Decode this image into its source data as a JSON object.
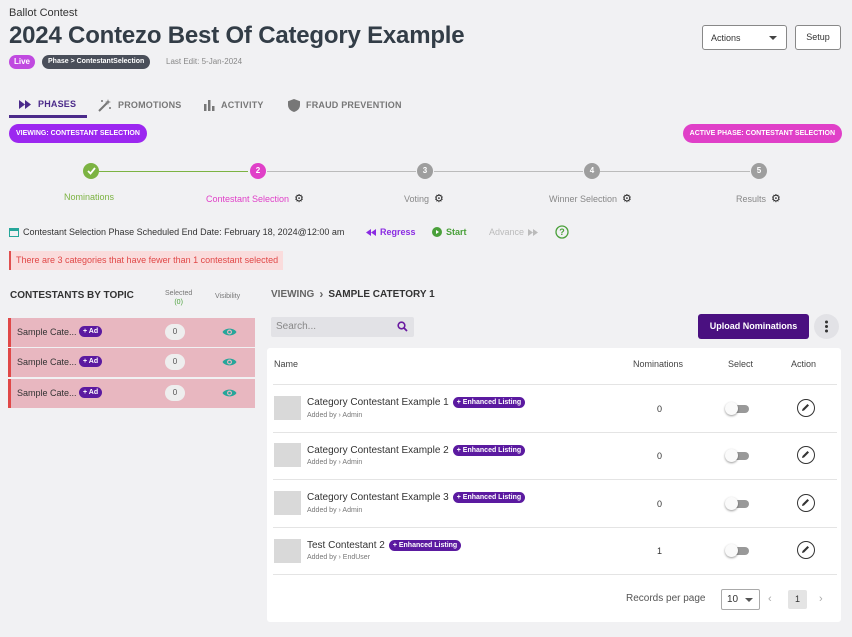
{
  "header": {
    "breadcrumb": "Ballot Contest",
    "title": "2024 Contezo Best Of Category Example",
    "status_badge": "Live",
    "phase_badge": "Phase > ContestantSelection",
    "last_edit": "Last Edit: 5-Jan-2024",
    "actions_label": "Actions",
    "setup_label": "Setup"
  },
  "tabs": [
    {
      "label": "PHASES",
      "icon": "fast-forward-icon",
      "active": true
    },
    {
      "label": "PROMOTIONS",
      "icon": "magic-wand-icon",
      "active": false
    },
    {
      "label": "ACTIVITY",
      "icon": "bar-chart-icon",
      "active": false
    },
    {
      "label": "FRAUD PREVENTION",
      "icon": "shield-icon",
      "active": false
    }
  ],
  "viewing_pill": "VIEWING:  CONTESTANT SELECTION",
  "active_phase_pill": "ACTIVE PHASE:  CONTESTANT SELECTION",
  "stepper": [
    {
      "number": "",
      "label": "Nominations",
      "state": "complete",
      "gear": false
    },
    {
      "number": "2",
      "label": "Contestant Selection",
      "state": "current",
      "gear": true
    },
    {
      "number": "3",
      "label": "Voting",
      "state": "pending",
      "gear": true
    },
    {
      "number": "4",
      "label": "Winner Selection",
      "state": "pending",
      "gear": true
    },
    {
      "number": "5",
      "label": "Results",
      "state": "pending",
      "gear": true
    }
  ],
  "schedule": {
    "text": "Contestant Selection Phase Scheduled End Date: February 18, 2024@12:00 am",
    "regress_label": "Regress",
    "start_label": "Start",
    "advance_label": "Advance"
  },
  "alert_text": "There are 3 categories that have fewer than 1 contestant selected",
  "topics": {
    "heading": "CONTESTANTS BY TOPIC",
    "selected_label": "Selected",
    "selected_count": "(0)",
    "visibility_label": "Visibility",
    "rows": [
      {
        "name": "Sample Cate...",
        "ad_label": "+ Ad",
        "count": "0"
      },
      {
        "name": "Sample Cate...",
        "ad_label": "+ Ad",
        "count": "0"
      },
      {
        "name": "Sample Cate...",
        "ad_label": "+ Ad",
        "count": "0"
      }
    ]
  },
  "main": {
    "viewing_label": "VIEWING",
    "category": "SAMPLE CATETORY 1",
    "search_placeholder": "Search...",
    "upload_label": "Upload Nominations",
    "columns": {
      "name": "Name",
      "nominations": "Nominations",
      "select": "Select",
      "action": "Action"
    },
    "rows": [
      {
        "name": "Category Contestant Example 1",
        "tag": "+ Enhanced Listing",
        "added_by": "Added by › Admin",
        "nominations": "0",
        "selected": false
      },
      {
        "name": "Category Contestant Example 2",
        "tag": "+ Enhanced Listing",
        "added_by": "Added by › Admin",
        "nominations": "0",
        "selected": false
      },
      {
        "name": "Category Contestant Example 3",
        "tag": "+ Enhanced Listing",
        "added_by": "Added by › Admin",
        "nominations": "0",
        "selected": false
      },
      {
        "name": "Test Contestant 2",
        "tag": "+ Enhanced Listing",
        "added_by": "Added by › EndUser",
        "nominations": "1",
        "selected": false
      }
    ],
    "records_per_page_label": "Records per page",
    "records_per_page": "10",
    "current_page": "1"
  },
  "colors": {
    "accent_purple": "#4a1080",
    "viewing_pill": "#9c27f0",
    "active_phase_pill": "#e040c8",
    "step_complete": "#7cb342",
    "step_current": "#e040c8",
    "step_pending": "#9e9e9e",
    "alert_text": "#e04848",
    "topic_row_bg": "#e8b7c0",
    "eye_icon": "#26a69a"
  }
}
